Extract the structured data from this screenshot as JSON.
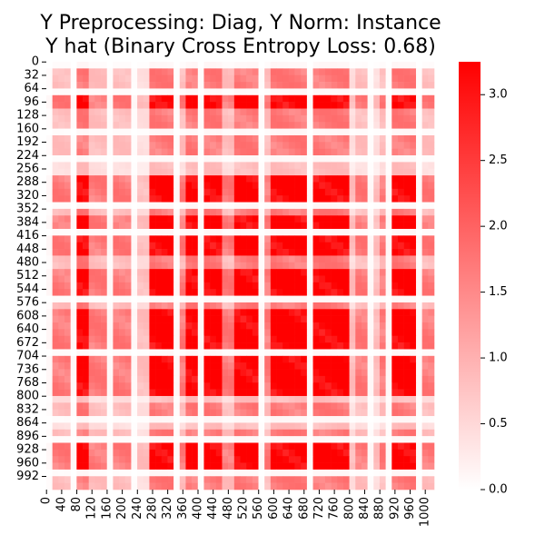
{
  "chart_data": {
    "type": "heatmap",
    "title": "Y Preprocessing: Diag, Y Norm: Instance",
    "subtitle": "Y hat (Binary Cross Entropy Loss: 0.68)",
    "xlabel": "",
    "ylabel": "",
    "matrix_size": 1024,
    "y_tick_labels": [
      "0",
      "32",
      "64",
      "96",
      "128",
      "160",
      "192",
      "224",
      "256",
      "288",
      "320",
      "352",
      "384",
      "416",
      "448",
      "480",
      "512",
      "544",
      "576",
      "608",
      "640",
      "672",
      "704",
      "736",
      "768",
      "800",
      "832",
      "864",
      "896",
      "928",
      "960",
      "992"
    ],
    "x_tick_labels": [
      "0",
      "40",
      "80",
      "120",
      "160",
      "200",
      "240",
      "280",
      "320",
      "360",
      "400",
      "440",
      "480",
      "520",
      "560",
      "600",
      "640",
      "680",
      "720",
      "760",
      "800",
      "840",
      "880",
      "920",
      "960",
      "1000"
    ],
    "colorbar": {
      "min": 0.0,
      "max": 3.25,
      "ticks": [
        "0.0",
        "0.5",
        "1.0",
        "1.5",
        "2.0",
        "2.5",
        "3.0"
      ],
      "tick_values": [
        0.0,
        0.5,
        1.0,
        1.5,
        2.0,
        2.5,
        3.0
      ],
      "color_low": "#ffffff",
      "color_high": "#ff0000"
    },
    "strong_bands": [
      [
        80,
        115
      ],
      [
        280,
        340
      ],
      [
        375,
        395
      ],
      [
        410,
        460
      ],
      [
        500,
        560
      ],
      [
        600,
        680
      ],
      [
        710,
        800
      ],
      [
        910,
        970
      ]
    ],
    "medium_bands": [
      [
        10,
        60
      ],
      [
        120,
        160
      ],
      [
        180,
        230
      ],
      [
        350,
        370
      ],
      [
        470,
        490
      ],
      [
        570,
        590
      ],
      [
        820,
        840
      ],
      [
        880,
        900
      ],
      [
        990,
        1020
      ]
    ],
    "weak_bands": [
      [
        240,
        270
      ],
      [
        800,
        810
      ],
      [
        860,
        875
      ]
    ],
    "grid": false
  }
}
